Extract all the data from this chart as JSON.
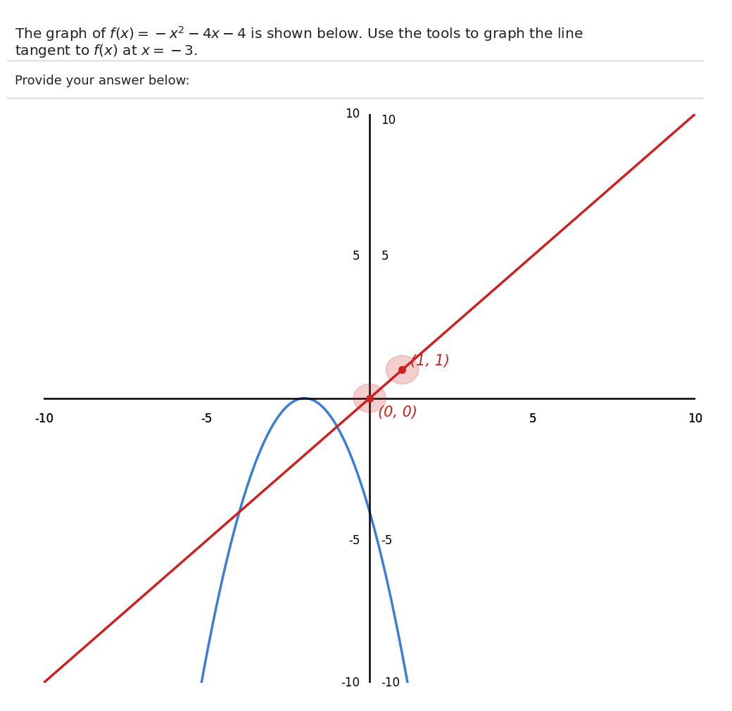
{
  "title_line1": "The graph of $f(x) = -x^2 - 4x - 4$ is shown below. Use the tools to graph the line",
  "title_line2": "tangent to $f(x)$ at $x = -3$.",
  "provide_text": "Provide your answer below:",
  "xlim": [
    -10,
    10
  ],
  "ylim": [
    -10,
    10
  ],
  "xticks": [
    -10,
    -5,
    5,
    10
  ],
  "yticks": [
    -10,
    -5,
    5,
    10
  ],
  "xtick_labels": [
    "-10",
    "-5",
    "5",
    "10"
  ],
  "ytick_labels": [
    "-10",
    "-5",
    "5",
    "10"
  ],
  "parabola_color": "#3a7fd5",
  "tangent_color": "#cc2222",
  "background_color": "#ffffff",
  "grid_color": "#cccccc",
  "point1": [
    0,
    0
  ],
  "point2": [
    1,
    1
  ],
  "point1_label": "(0, 0)",
  "point2_label": "(1, 1)",
  "tangent_slope": 1,
  "tangent_intercept": 0,
  "axes_color": "#000000",
  "annotation_color": "#cc2222",
  "annotation_fontsize": 15,
  "separator_color": "#cccccc"
}
